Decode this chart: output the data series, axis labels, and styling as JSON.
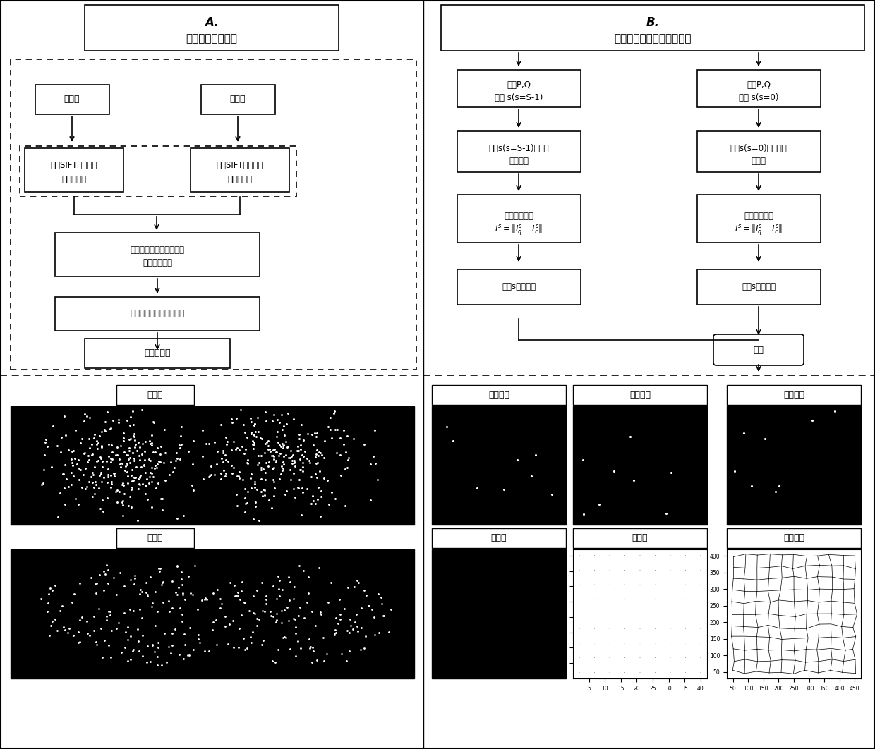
{
  "title_A": "A.",
  "title_A_sub": "稠密控制点对产生",
  "title_B": "B.",
  "title_B_sub": "多尺度残余图的变形场估计",
  "box_A1": "参考图",
  "box_A2": "输入图",
  "box_A3_1": "基于SIFT的稠密特",
  "box_A3_2": "征检测算子",
  "box_A5_1": "基于相位相关的整像素的",
  "box_A5_2": "控制点对匹配",
  "box_A6": "基于梯度求精亚像素匹配",
  "box_A7": "亚像素标记",
  "box_B1L_1": "标记P,Q",
  "box_B1L_2": "尺度 s(s=S-1)",
  "box_B2L_1": "尺度s(s=S-1)，求解",
  "box_B2L_2": "畸变模型",
  "box_B3L_1": "计算残余图像",
  "box_B4L": "尺度s畸变参数",
  "box_B1R_1": "标记P,Q",
  "box_B1R_2": "尺度 s(s=0)",
  "box_B2R_1": "尺度s(s=0)，求解畸",
  "box_B2R_2": "变模型",
  "box_B3R_1": "计算残余图像",
  "box_B4R": "尺度s畸变参数",
  "box_output": "输出",
  "label_before": "扩展前",
  "label_after": "扩展后",
  "label_input": "输入图像",
  "label_ref": "参考图像",
  "label_deform_result": "变形结果",
  "label_residual": "残余图",
  "label_deform_field": "变形场",
  "label_deform_network": "变形网络",
  "bg_color": "#ffffff"
}
